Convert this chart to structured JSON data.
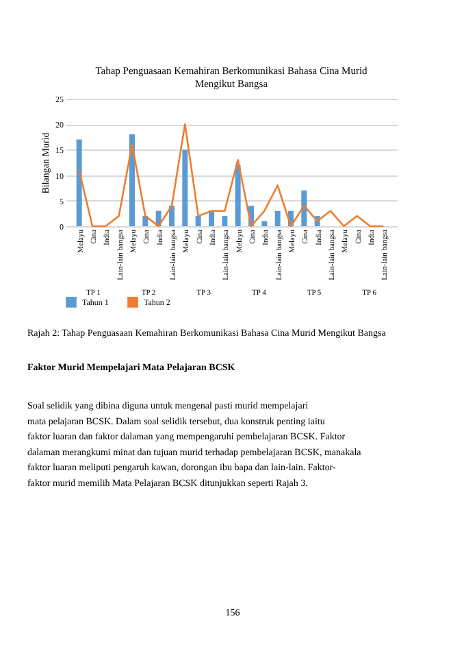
{
  "chart_data": {
    "type": "bar",
    "title": "Tahap Penguasaan Kemahiran Berkomunikasi Bahasa Cina Murid Mengikut Bangsa",
    "ylabel": "Bilangan Murid",
    "categories": [
      "Melayu",
      "Cina",
      "India",
      "Lain-lain bangsa",
      "Melayu",
      "Cina",
      "India",
      "Lain-lain bangsa",
      "Melayu",
      "Cina",
      "India",
      "Lain-lain bangsa",
      "Melayu",
      "Cina",
      "India",
      "Lain-lain bangsa",
      "Melayu",
      "Cina",
      "India",
      "Lain-lain bangsa",
      "Melayu",
      "Cina",
      "India",
      "Lain-lain bangsa"
    ],
    "series": [
      {
        "name": "Tahun 1",
        "color": "#5b9bd5",
        "values": [
          17,
          0,
          0,
          0,
          18,
          2,
          3,
          4,
          15,
          2,
          3,
          2,
          12,
          4,
          1,
          3,
          3,
          7,
          2,
          0,
          0,
          0,
          0,
          0
        ]
      },
      {
        "name": "Tahun 2",
        "type": "line",
        "color": "#ed7d31",
        "values": [
          11,
          0,
          0,
          2,
          16,
          2,
          0,
          4,
          20,
          2,
          3,
          3,
          13,
          0,
          3,
          8,
          0,
          4,
          1,
          3,
          0,
          2,
          0,
          0
        ]
      }
    ],
    "ylim": [
      0,
      25
    ],
    "yticks": [
      0,
      5,
      10,
      15,
      20,
      25
    ],
    "grid": "y",
    "legend": "bottom",
    "annotations": [
      "TP 1",
      "TP 2",
      "TP 3",
      "TP 4",
      "TP 5",
      "TP 6",
      "Rajah 2: Tahap Penguasaan Kemahiran Berkomunikasi Bahasa Cina Murid Mengikut Bangsa",
      "Faktor Murid Mempelajari Mata Pelajaran BCSK",
      "Soal selidik yang dibina diguna untuk mengenal pasti murid mempelajari mata pelajaran BCSK. Dalam soal selidik tersebut, dua konstruk penting iaitu faktor luaran dan faktor dalaman yang mempengaruhi pembelajaran BCSK. Faktor dalaman merangkumi minat dan tujuan murid terhadap pembelajaran BCSK, manakala faktor luaran meliputi pengaruh kawan, dorongan ibu bapa dan lain-lain. Faktor-faktor murid memilih Mata Pelajaran BCSK ditunjukkan seperti Rajah 3.",
      "156"
    ]
  }
}
